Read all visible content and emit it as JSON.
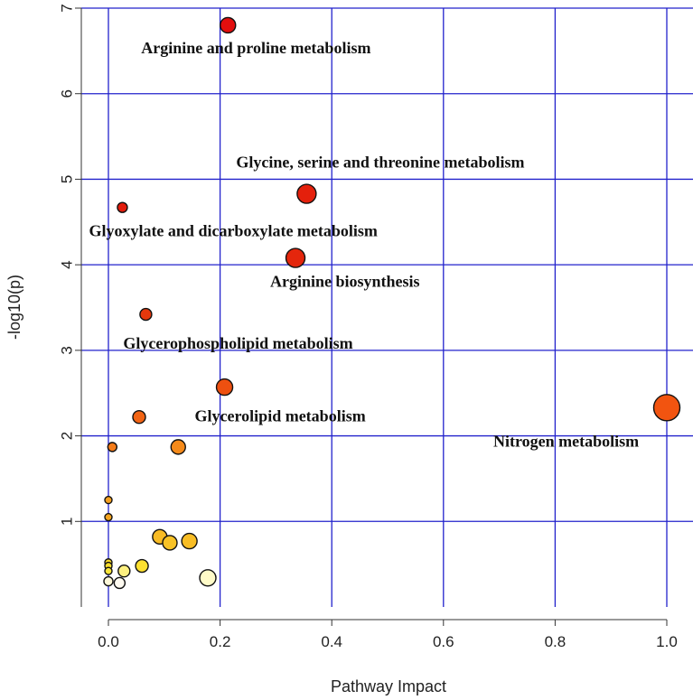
{
  "chart_data": {
    "type": "scatter",
    "title": "",
    "xlabel": "Pathway Impact",
    "ylabel": "-log10(p)",
    "xlim": [
      0,
      1
    ],
    "ylim": [
      0,
      7
    ],
    "xticks": [
      0,
      0.2,
      0.4,
      0.6,
      0.8,
      1
    ],
    "xtick_labels": [
      "0.0",
      "0.2",
      "0.4",
      "0.6",
      "0.8",
      "1.0"
    ],
    "yticks": [
      1,
      2,
      3,
      4,
      5,
      6,
      7
    ],
    "ytick_labels": [
      "1",
      "2",
      "3",
      "4",
      "5",
      "6",
      "7"
    ],
    "grid": true,
    "grid_color": "#2222cc",
    "points": [
      {
        "x": 0.214,
        "y": 6.8,
        "size": 8.5,
        "color": "#e20e0e",
        "label": "Arginine and proline metabolism"
      },
      {
        "x": 0.355,
        "y": 4.83,
        "size": 10.5,
        "color": "#e4200c",
        "label": "Glycine, serine and threonine metabolism"
      },
      {
        "x": 0.025,
        "y": 4.67,
        "size": 5.5,
        "color": "#e21c0c",
        "label": "Glyoxylate and dicarboxylate metabolism"
      },
      {
        "x": 0.335,
        "y": 4.08,
        "size": 10.5,
        "color": "#e4260c",
        "label": "Arginine biosynthesis"
      },
      {
        "x": 0.067,
        "y": 3.42,
        "size": 6.5,
        "color": "#e6380c",
        "label": "Glycerophospholipid metabolism"
      },
      {
        "x": 0.208,
        "y": 2.57,
        "size": 9,
        "color": "#ee5010",
        "label": "Glycerolipid metabolism"
      },
      {
        "x": 1.0,
        "y": 2.33,
        "size": 14.5,
        "color": "#f25410",
        "label": "Nitrogen metabolism"
      },
      {
        "x": 0.055,
        "y": 2.22,
        "size": 7,
        "color": "#f26414",
        "label": ""
      },
      {
        "x": 0.007,
        "y": 1.87,
        "size": 5,
        "color": "#f57c18",
        "label": ""
      },
      {
        "x": 0.125,
        "y": 1.87,
        "size": 8,
        "color": "#f58a1a",
        "label": ""
      },
      {
        "x": 0.0,
        "y": 1.25,
        "size": 4,
        "color": "#f5a020",
        "label": ""
      },
      {
        "x": 0.0,
        "y": 1.05,
        "size": 4,
        "color": "#f5a420",
        "label": ""
      },
      {
        "x": 0.092,
        "y": 0.82,
        "size": 8,
        "color": "#f8bb24",
        "label": ""
      },
      {
        "x": 0.11,
        "y": 0.75,
        "size": 8,
        "color": "#f8c226",
        "label": ""
      },
      {
        "x": 0.145,
        "y": 0.77,
        "size": 8.5,
        "color": "#f8bd25",
        "label": ""
      },
      {
        "x": 0.0,
        "y": 0.52,
        "size": 4,
        "color": "#f9d82a",
        "label": ""
      },
      {
        "x": 0.0,
        "y": 0.48,
        "size": 4,
        "color": "#fadd2c",
        "label": ""
      },
      {
        "x": 0.0,
        "y": 0.42,
        "size": 4,
        "color": "#fbe63a",
        "label": ""
      },
      {
        "x": 0.06,
        "y": 0.48,
        "size": 7,
        "color": "#fde030",
        "label": ""
      },
      {
        "x": 0.028,
        "y": 0.42,
        "size": 6.5,
        "color": "#fdf080",
        "label": ""
      },
      {
        "x": 0.0,
        "y": 0.3,
        "size": 5,
        "color": "#fdf8d8",
        "label": ""
      },
      {
        "x": 0.02,
        "y": 0.28,
        "size": 6,
        "color": "#fefaf0",
        "label": ""
      },
      {
        "x": 0.178,
        "y": 0.34,
        "size": 9,
        "color": "#fffbc8",
        "label": ""
      }
    ]
  }
}
